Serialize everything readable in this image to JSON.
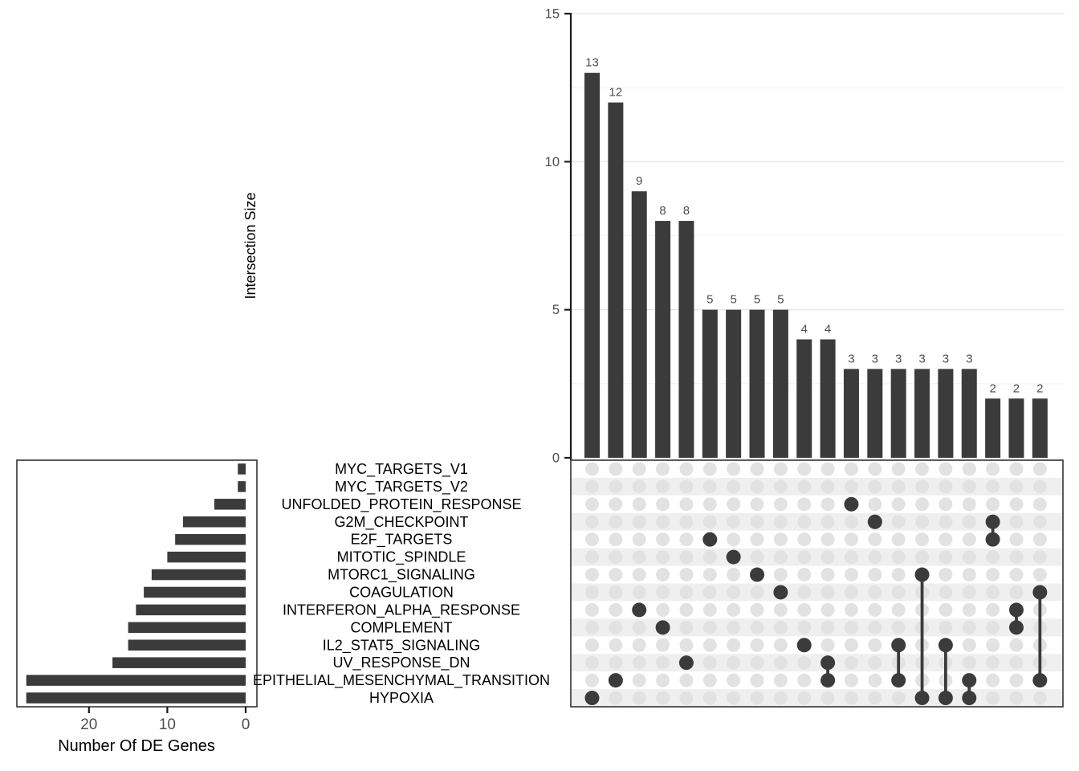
{
  "chart_data": {
    "type": "upset",
    "intersection_axis": {
      "label": "Intersection Size",
      "ticks": [
        0,
        5,
        10,
        15
      ],
      "minor_ticks": [
        2.5,
        7.5,
        12.5
      ],
      "ylim": [
        0,
        15
      ]
    },
    "set_axis": {
      "label": "Number Of DE Genes",
      "ticks": [
        20,
        10,
        0
      ],
      "xlim": [
        0,
        29.3
      ]
    },
    "sets": [
      {
        "name": "MYC_TARGETS_V1",
        "size": 1
      },
      {
        "name": "MYC_TARGETS_V2",
        "size": 1
      },
      {
        "name": "UNFOLDED_PROTEIN_RESPONSE",
        "size": 4
      },
      {
        "name": "G2M_CHECKPOINT",
        "size": 8
      },
      {
        "name": "E2F_TARGETS",
        "size": 9
      },
      {
        "name": "MITOTIC_SPINDLE",
        "size": 10
      },
      {
        "name": "MTORC1_SIGNALING",
        "size": 12
      },
      {
        "name": "COAGULATION",
        "size": 13
      },
      {
        "name": "INTERFERON_ALPHA_RESPONSE",
        "size": 14
      },
      {
        "name": "COMPLEMENT",
        "size": 15
      },
      {
        "name": "IL2_STAT5_SIGNALING",
        "size": 15
      },
      {
        "name": "UV_RESPONSE_DN",
        "size": 17
      },
      {
        "name": "EPITHELIAL_MESENCHYMAL_TRANSITION",
        "size": 28
      },
      {
        "name": "HYPOXIA",
        "size": 28
      }
    ],
    "intersections": [
      {
        "size": 13,
        "members": [
          "HYPOXIA"
        ]
      },
      {
        "size": 12,
        "members": [
          "EPITHELIAL_MESENCHYMAL_TRANSITION"
        ]
      },
      {
        "size": 9,
        "members": [
          "INTERFERON_ALPHA_RESPONSE"
        ]
      },
      {
        "size": 8,
        "members": [
          "COMPLEMENT"
        ]
      },
      {
        "size": 8,
        "members": [
          "UV_RESPONSE_DN"
        ]
      },
      {
        "size": 5,
        "members": [
          "E2F_TARGETS"
        ]
      },
      {
        "size": 5,
        "members": [
          "MITOTIC_SPINDLE"
        ]
      },
      {
        "size": 5,
        "members": [
          "MTORC1_SIGNALING"
        ]
      },
      {
        "size": 5,
        "members": [
          "COAGULATION"
        ]
      },
      {
        "size": 4,
        "members": [
          "IL2_STAT5_SIGNALING"
        ]
      },
      {
        "size": 4,
        "members": [
          "UV_RESPONSE_DN",
          "EPITHELIAL_MESENCHYMAL_TRANSITION"
        ]
      },
      {
        "size": 3,
        "members": [
          "UNFOLDED_PROTEIN_RESPONSE"
        ]
      },
      {
        "size": 3,
        "members": [
          "G2M_CHECKPOINT"
        ]
      },
      {
        "size": 3,
        "members": [
          "IL2_STAT5_SIGNALING",
          "EPITHELIAL_MESENCHYMAL_TRANSITION"
        ]
      },
      {
        "size": 3,
        "members": [
          "MTORC1_SIGNALING",
          "HYPOXIA"
        ]
      },
      {
        "size": 3,
        "members": [
          "IL2_STAT5_SIGNALING",
          "HYPOXIA"
        ]
      },
      {
        "size": 3,
        "members": [
          "EPITHELIAL_MESENCHYMAL_TRANSITION",
          "HYPOXIA"
        ]
      },
      {
        "size": 2,
        "members": [
          "G2M_CHECKPOINT",
          "E2F_TARGETS"
        ]
      },
      {
        "size": 2,
        "members": [
          "INTERFERON_ALPHA_RESPONSE",
          "COMPLEMENT"
        ]
      },
      {
        "size": 2,
        "members": [
          "COAGULATION",
          "EPITHELIAL_MESENCHYMAL_TRANSITION"
        ]
      }
    ]
  },
  "colors": {
    "bar": "#3b3b3b",
    "filled_dot": "#3b3b3b",
    "empty_dot": "#e2e2e2",
    "stripe": "#efefef",
    "grid_major": "#e7e7e7",
    "grid_minor": "#f2f2f2",
    "axis_line": "#1a1a1a",
    "panel_border": "#333333",
    "tick_label": "#4d4d4d",
    "value_label": "#4d4d4d",
    "set_label": "#000000",
    "background": "#ffffff"
  }
}
